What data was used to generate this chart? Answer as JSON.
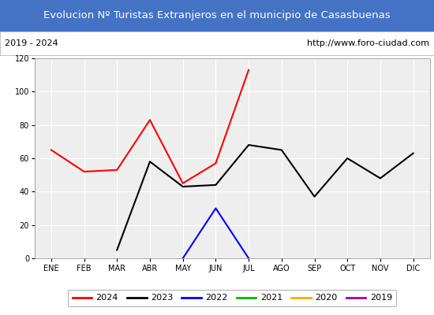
{
  "title": "Evolucion Nº Turistas Extranjeros en el municipio de Casasbuenas",
  "subtitle_left": "2019 - 2024",
  "subtitle_right": "http://www.foro-ciudad.com",
  "title_bg_color": "#4472c4",
  "title_text_color": "#ffffff",
  "subtitle_bg_color": "#ffffff",
  "subtitle_text_color": "#000000",
  "plot_bg_color": "#eeeeee",
  "months": [
    "ENE",
    "FEB",
    "MAR",
    "ABR",
    "MAY",
    "JUN",
    "JUL",
    "AGO",
    "SEP",
    "OCT",
    "NOV",
    "DIC"
  ],
  "series": {
    "2024": {
      "color": "#ff0000",
      "values": [
        65,
        52,
        53,
        83,
        45,
        57,
        113,
        null,
        null,
        null,
        null,
        null
      ]
    },
    "2023": {
      "color": "#000000",
      "values": [
        null,
        null,
        5,
        58,
        43,
        44,
        68,
        65,
        37,
        60,
        48,
        63
      ]
    },
    "2022": {
      "color": "#0000ff",
      "values": [
        null,
        null,
        null,
        null,
        0,
        30,
        0,
        null,
        null,
        null,
        null,
        null
      ]
    },
    "2021": {
      "color": "#00bb00",
      "values": [
        null,
        null,
        null,
        null,
        null,
        null,
        null,
        null,
        null,
        null,
        null,
        null
      ]
    },
    "2020": {
      "color": "#ffaa00",
      "values": [
        null,
        null,
        null,
        null,
        null,
        null,
        null,
        null,
        null,
        null,
        null,
        null
      ]
    },
    "2019": {
      "color": "#aa00aa",
      "values": [
        null,
        null,
        null,
        null,
        null,
        null,
        null,
        null,
        null,
        null,
        null,
        null
      ]
    }
  },
  "ylim": [
    0,
    120
  ],
  "yticks": [
    0,
    20,
    40,
    60,
    80,
    100,
    120
  ],
  "legend_order": [
    "2024",
    "2023",
    "2022",
    "2021",
    "2020",
    "2019"
  ]
}
